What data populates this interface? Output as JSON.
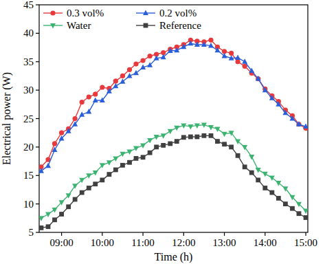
{
  "chart_data": {
    "type": "line",
    "x_label": "Time (h)",
    "y_label": "Electrical power (W)",
    "x": [
      8.5,
      8.67,
      8.83,
      9.0,
      9.17,
      9.33,
      9.5,
      9.67,
      9.83,
      10.0,
      10.17,
      10.33,
      10.5,
      10.67,
      10.83,
      11.0,
      11.17,
      11.33,
      11.5,
      11.67,
      11.83,
      12.0,
      12.17,
      12.33,
      12.5,
      12.67,
      12.83,
      13.0,
      13.17,
      13.33,
      13.5,
      13.67,
      13.83,
      14.0,
      14.17,
      14.33,
      14.5,
      14.67,
      14.83,
      15.0
    ],
    "xlim": [
      8.45,
      15.05
    ],
    "xticks": [
      {
        "value": 9,
        "label": "09:00"
      },
      {
        "value": 10,
        "label": "10:00"
      },
      {
        "value": 11,
        "label": "11:00"
      },
      {
        "value": 12,
        "label": "12:00"
      },
      {
        "value": 13,
        "label": "13:00"
      },
      {
        "value": 14,
        "label": "14:00"
      },
      {
        "value": 15,
        "label": "15:00"
      }
    ],
    "ylim": [
      5,
      45
    ],
    "yticks": [
      5,
      10,
      15,
      20,
      25,
      30,
      35,
      40,
      45
    ],
    "grid": false,
    "legend": "upper left",
    "series": [
      {
        "name": "0.3 vol%",
        "color": "#e8393c",
        "marker": "circle",
        "values": [
          16.5,
          17.8,
          20.6,
          22.5,
          23.2,
          25.0,
          27.9,
          28.8,
          29.3,
          30.5,
          30.3,
          31.6,
          32.5,
          33.6,
          34.6,
          35.2,
          36.0,
          36.3,
          36.6,
          37.2,
          37.6,
          38.0,
          38.8,
          38.6,
          38.5,
          38.8,
          37.6,
          36.8,
          36.5,
          35.0,
          34.2,
          33.0,
          32.0,
          30.2,
          29.0,
          28.0,
          26.5,
          25.5,
          24.0,
          23.3
        ]
      },
      {
        "name": "0.2 vol%",
        "color": "#2b5fd9",
        "marker": "triangle-up",
        "values": [
          15.8,
          16.7,
          19.5,
          21.5,
          22.8,
          24.0,
          25.7,
          26.2,
          28.2,
          28.2,
          29.8,
          30.7,
          31.5,
          32.5,
          33.0,
          34.0,
          34.4,
          35.6,
          35.8,
          36.9,
          37.0,
          37.6,
          38.2,
          38.0,
          38.0,
          37.8,
          37.0,
          36.0,
          35.6,
          35.7,
          35.0,
          33.4,
          32.0,
          30.0,
          28.6,
          27.5,
          26.0,
          25.0,
          24.0,
          23.6
        ]
      },
      {
        "name": "Water",
        "color": "#3cb371",
        "marker": "triangle-down",
        "values": [
          7.5,
          8.2,
          9.0,
          10.3,
          11.5,
          13.2,
          14.2,
          15.0,
          15.5,
          16.8,
          17.3,
          18.0,
          18.8,
          19.2,
          19.8,
          20.3,
          21.2,
          21.8,
          22.0,
          22.8,
          23.4,
          23.8,
          23.6,
          23.8,
          23.9,
          23.5,
          23.2,
          22.3,
          22.5,
          21.0,
          20.0,
          18.3,
          16.0,
          15.3,
          14.6,
          13.7,
          12.7,
          11.2,
          10.0,
          8.8
        ]
      },
      {
        "name": "Reference",
        "color": "#404040",
        "marker": "square",
        "values": [
          5.8,
          6.0,
          7.2,
          8.2,
          9.5,
          10.8,
          12.0,
          12.8,
          13.5,
          14.2,
          15.2,
          16.0,
          16.8,
          17.3,
          18.0,
          18.2,
          19.0,
          20.0,
          20.3,
          20.6,
          21.0,
          21.7,
          21.8,
          21.8,
          22.0,
          22.0,
          21.0,
          20.5,
          20.0,
          18.5,
          16.5,
          15.5,
          14.2,
          12.8,
          12.0,
          11.0,
          10.0,
          9.2,
          8.3,
          7.6
        ]
      }
    ]
  }
}
